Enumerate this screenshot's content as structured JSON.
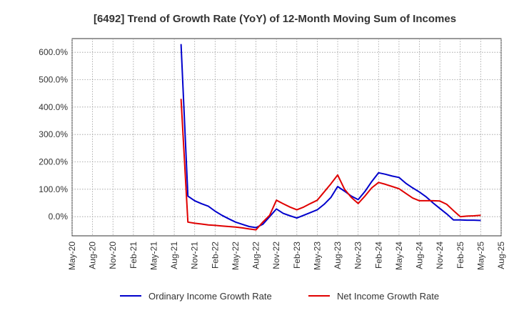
{
  "chart_data": {
    "type": "line",
    "title": "[6492]  Trend of Growth Rate (YoY) of 12-Month Moving Sum of Incomes",
    "xlabel": "",
    "ylabel": "",
    "x_ticks": [
      "May-20",
      "Aug-20",
      "Nov-20",
      "Feb-21",
      "May-21",
      "Aug-21",
      "Nov-21",
      "Feb-22",
      "May-22",
      "Aug-22",
      "Nov-22",
      "Feb-23",
      "May-23",
      "Aug-23",
      "Nov-23",
      "Feb-24",
      "May-24",
      "Aug-24",
      "Nov-24",
      "Feb-25",
      "May-25",
      "Aug-25"
    ],
    "y_ticks": [
      0,
      100,
      200,
      300,
      400,
      500,
      600
    ],
    "y_tick_labels": [
      "0.0%",
      "100.0%",
      "200.0%",
      "300.0%",
      "400.0%",
      "500.0%",
      "600.0%"
    ],
    "ylim": [
      -70,
      650
    ],
    "grid": true,
    "legend_position": "bottom",
    "x": [
      "Sep-21",
      "Oct-21",
      "Nov-21",
      "Dec-21",
      "Jan-22",
      "Feb-22",
      "Mar-22",
      "Apr-22",
      "May-22",
      "Jun-22",
      "Jul-22",
      "Aug-22",
      "Sep-22",
      "Oct-22",
      "Nov-22",
      "Dec-22",
      "Jan-23",
      "Feb-23",
      "Mar-23",
      "Apr-23",
      "May-23",
      "Jun-23",
      "Jul-23",
      "Aug-23",
      "Sep-23",
      "Oct-23",
      "Nov-23",
      "Dec-23",
      "Jan-24",
      "Feb-24",
      "Mar-24",
      "Apr-24",
      "May-24",
      "Jun-24",
      "Jul-24",
      "Aug-24",
      "Sep-24",
      "Oct-24",
      "Nov-24",
      "Dec-24",
      "Jan-25",
      "Feb-25",
      "Mar-25",
      "Apr-25",
      "May-25"
    ],
    "series": [
      {
        "name": "Ordinary Income Growth Rate",
        "color": "#0000cc",
        "values": [
          null,
          null,
          null,
          null,
          null,
          null,
          null,
          null,
          null,
          null,
          null,
          null,
          null,
          null,
          null,
          null,
          null,
          null,
          null,
          null,
          null,
          null,
          null,
          null,
          null,
          null,
          null,
          null,
          null,
          null,
          null,
          null,
          null,
          null,
          null,
          null,
          null,
          null,
          null,
          null,
          null,
          null,
          null,
          null,
          null
        ]
      },
      {
        "name": "Net Income Growth Rate",
        "color": "#e00000",
        "values": [
          null,
          null,
          null,
          null,
          null,
          null,
          null,
          null,
          null,
          null,
          null,
          null,
          null,
          null,
          null,
          null,
          null,
          null,
          null,
          null,
          null,
          null,
          null,
          null,
          null,
          null,
          null,
          null,
          null,
          null,
          null,
          null,
          null,
          null,
          null,
          null,
          null,
          null,
          null,
          null,
          null,
          null,
          null,
          null,
          null
        ]
      }
    ]
  }
}
